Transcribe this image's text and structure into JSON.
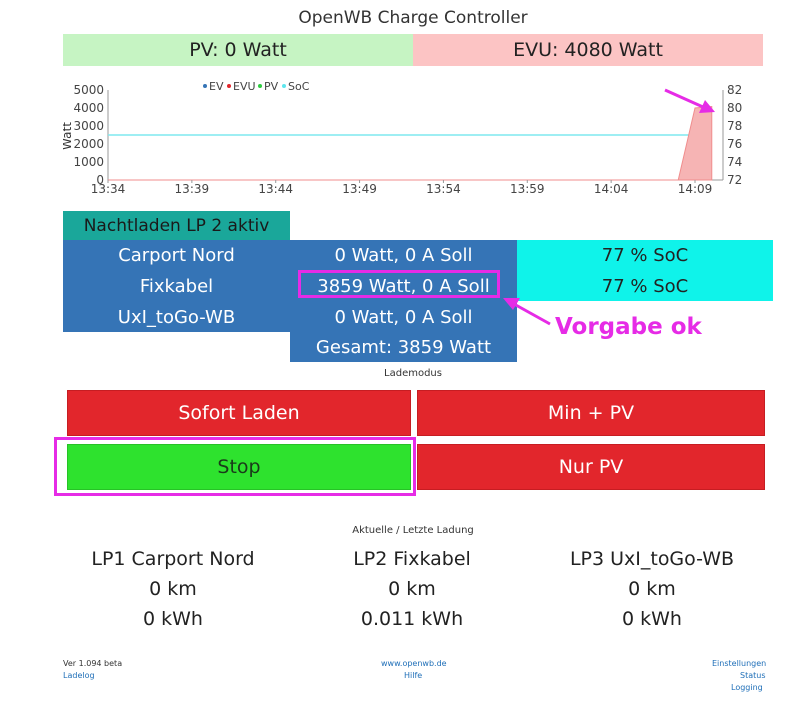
{
  "header": {
    "title": "OpenWB Charge Controller"
  },
  "power": {
    "pv": "PV: 0 Watt",
    "evu": "EVU: 4080 Watt"
  },
  "chart_data": {
    "type": "line",
    "legend": [
      "EV",
      "EVU",
      "PV",
      "SoC"
    ],
    "legend_placement": "top-left",
    "ylabel": "Watt",
    "ylim": [
      0,
      5000
    ],
    "y_ticks": [
      "5000",
      "4000",
      "3000",
      "2000",
      "1000",
      "0"
    ],
    "y2lim": [
      72,
      82
    ],
    "y2_ticks": [
      "82",
      "80",
      "78",
      "76",
      "74",
      "72"
    ],
    "x_ticks": [
      "13:34",
      "13:39",
      "13:44",
      "13:49",
      "13:54",
      "13:59",
      "14:04",
      "14:09"
    ],
    "series": [
      {
        "name": "SoC",
        "color": "#7fe9ef",
        "x": [
          "13:34",
          "14:10"
        ],
        "values": [
          77,
          77
        ]
      },
      {
        "name": "EVU",
        "color": "#f08d8d",
        "x": [
          "13:34",
          "14:08",
          "14:09",
          "14:10"
        ],
        "values": [
          0,
          0,
          4000,
          4080
        ]
      }
    ]
  },
  "status": {
    "night_label": "Nachtladen LP 2 aktiv"
  },
  "loadpoints": [
    {
      "name": "Carport Nord",
      "watt": "0 Watt, 0 A Soll",
      "soc": "77 % SoC"
    },
    {
      "name": "Fixkabel",
      "watt": "3859 Watt, 0 A Soll",
      "soc": "77 % SoC"
    },
    {
      "name": "UxI_toGo-WB",
      "watt": "0 Watt, 0 A Soll"
    }
  ],
  "total": "Gesamt: 3859 Watt",
  "annotation": {
    "text": "Vorgabe ok",
    "color": "#e62be6"
  },
  "mode": {
    "title": "Lademodus",
    "sofort": "Sofort Laden",
    "minpv": "Min + PV",
    "stop": "Stop",
    "nurpv": "Nur PV"
  },
  "stats": {
    "title": "Aktuelle / Letzte Ladung",
    "items": [
      {
        "name": "LP1 Carport Nord",
        "km": "0 km",
        "kwh": "0 kWh"
      },
      {
        "name": "LP2 Fixkabel",
        "km": "0 km",
        "kwh": "0.011 kWh"
      },
      {
        "name": "LP3 UxI_toGo-WB",
        "km": "0 km",
        "kwh": "0 kWh"
      }
    ]
  },
  "footer": {
    "version": "Ver 1.094 beta",
    "ladelog": "Ladelog",
    "website": "www.openwb.de",
    "hilfe": "Hilfe",
    "einstellungen": "Einstellungen",
    "status": "Status",
    "logging": "Logging"
  }
}
